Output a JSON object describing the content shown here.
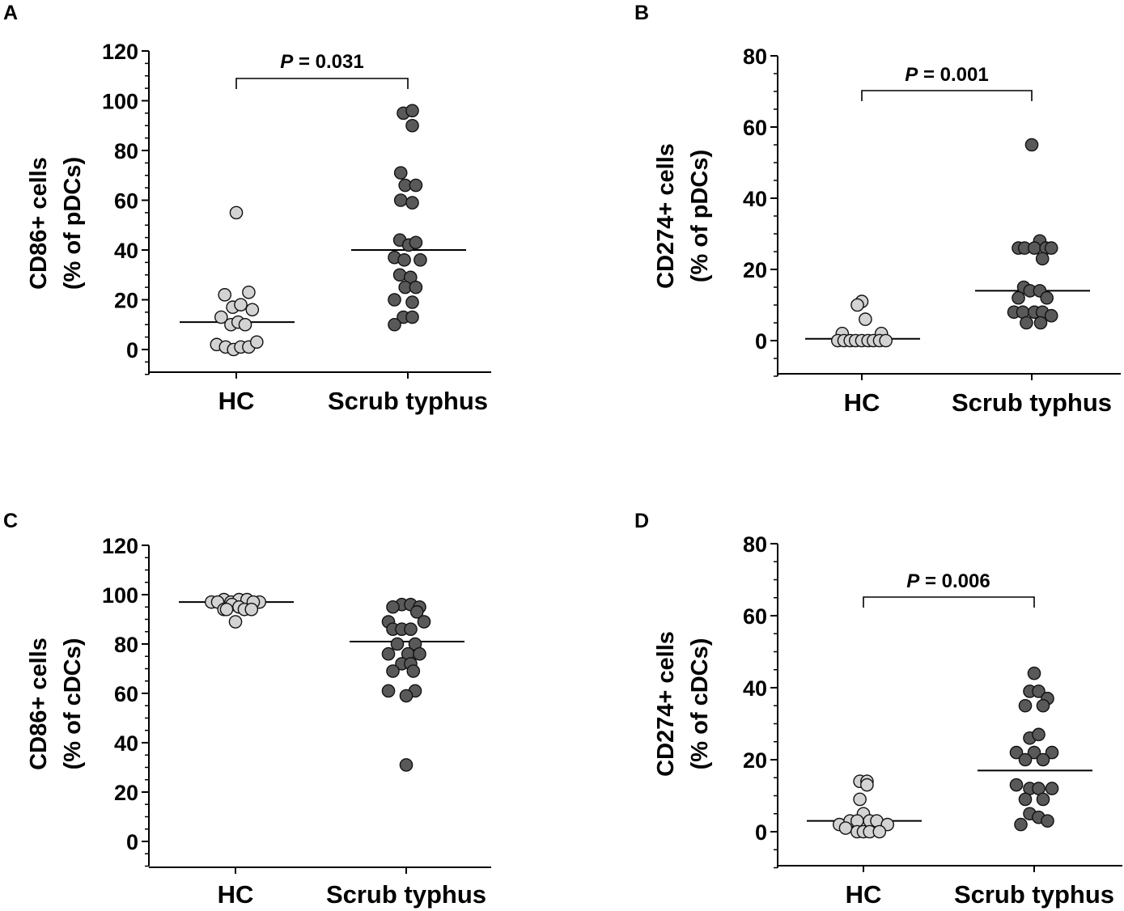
{
  "figure": {
    "colors": {
      "hc_fill": "#d3d3d3",
      "scrub_fill": "#595959",
      "marker_stroke": "#111111",
      "axis": "#000000"
    }
  },
  "chart_data": [
    {
      "panel": "A",
      "type": "scatter",
      "ylabel_line1": "CD86+ cells",
      "ylabel_line2": "(% of pDCs)",
      "ylim": [
        -10,
        120
      ],
      "yticks": [
        0,
        20,
        40,
        60,
        80,
        100,
        120
      ],
      "categories": [
        "HC",
        "Scrub typhus"
      ],
      "p_label": "P",
      "p_value": "= 0.031",
      "series": [
        {
          "name": "HC",
          "median": 11,
          "points": [
            [
              0,
              55
            ],
            [
              -0.13,
              22
            ],
            [
              0.14,
              23
            ],
            [
              -0.04,
              17
            ],
            [
              0.05,
              18
            ],
            [
              0.18,
              16
            ],
            [
              -0.17,
              13
            ],
            [
              -0.06,
              10
            ],
            [
              0.02,
              11
            ],
            [
              0.1,
              10
            ],
            [
              -0.22,
              2
            ],
            [
              -0.12,
              1
            ],
            [
              -0.03,
              0
            ],
            [
              0.05,
              1
            ],
            [
              0.14,
              1
            ],
            [
              0.23,
              3
            ]
          ]
        },
        {
          "name": "Scrub typhus",
          "median": 40,
          "points": [
            [
              -0.05,
              95
            ],
            [
              0.05,
              96
            ],
            [
              0.05,
              90
            ],
            [
              -0.08,
              71
            ],
            [
              -0.03,
              66
            ],
            [
              0.09,
              66
            ],
            [
              -0.08,
              60
            ],
            [
              0.05,
              59
            ],
            [
              -0.09,
              44
            ],
            [
              0.01,
              42
            ],
            [
              0.09,
              43
            ],
            [
              -0.15,
              37
            ],
            [
              -0.04,
              36
            ],
            [
              0.14,
              36
            ],
            [
              -0.09,
              30
            ],
            [
              0.03,
              29
            ],
            [
              -0.03,
              25
            ],
            [
              0.09,
              25
            ],
            [
              -0.15,
              20
            ],
            [
              0.05,
              19
            ],
            [
              -0.05,
              13
            ],
            [
              0.05,
              13
            ],
            [
              -0.15,
              10
            ]
          ]
        }
      ]
    },
    {
      "panel": "B",
      "type": "scatter",
      "ylabel_line1": "CD274+ cells",
      "ylabel_line2": "(% of pDCs)",
      "ylim": [
        -10,
        80
      ],
      "yticks": [
        0,
        20,
        40,
        60,
        80
      ],
      "categories": [
        "HC",
        "Scrub typhus"
      ],
      "p_label": "P",
      "p_value": "= 0.001",
      "series": [
        {
          "name": "HC",
          "median": 0.5,
          "points": [
            [
              0,
              11
            ],
            [
              -0.05,
              10
            ],
            [
              0.04,
              6
            ],
            [
              -0.22,
              2
            ],
            [
              0.22,
              2
            ],
            [
              -0.27,
              0
            ],
            [
              -0.2,
              0
            ],
            [
              -0.13,
              0
            ],
            [
              -0.07,
              0
            ],
            [
              0,
              0
            ],
            [
              0.07,
              0
            ],
            [
              0.13,
              0
            ],
            [
              0.2,
              0
            ],
            [
              0.27,
              0
            ]
          ]
        },
        {
          "name": "Scrub typhus",
          "median": 14,
          "points": [
            [
              0,
              55
            ],
            [
              0.09,
              28
            ],
            [
              -0.15,
              26
            ],
            [
              -0.08,
              26
            ],
            [
              0.03,
              26
            ],
            [
              0.16,
              26
            ],
            [
              0.22,
              26
            ],
            [
              0.12,
              23
            ],
            [
              -0.09,
              15
            ],
            [
              -0.02,
              14
            ],
            [
              0.09,
              14
            ],
            [
              -0.15,
              12
            ],
            [
              0.17,
              12
            ],
            [
              -0.2,
              8
            ],
            [
              -0.1,
              8
            ],
            [
              0.03,
              8
            ],
            [
              0.12,
              8
            ],
            [
              0.22,
              7
            ],
            [
              -0.06,
              5
            ],
            [
              0.1,
              5
            ]
          ]
        }
      ]
    },
    {
      "panel": "C",
      "type": "scatter",
      "ylabel_line1": "CD86+ cells",
      "ylabel_line2": "(% of cDCs)",
      "ylim": [
        -10,
        120
      ],
      "yticks": [
        0,
        20,
        40,
        60,
        80,
        100,
        120
      ],
      "categories": [
        "HC",
        "Scrub typhus"
      ],
      "p_label": "",
      "p_value": "",
      "series": [
        {
          "name": "HC",
          "median": 97,
          "points": [
            [
              -0.27,
              97
            ],
            [
              -0.13,
              98
            ],
            [
              -0.05,
              97
            ],
            [
              0.04,
              98
            ],
            [
              0.13,
              98
            ],
            [
              0.27,
              97
            ],
            [
              -0.2,
              97
            ],
            [
              0.2,
              97
            ],
            [
              -0.13,
              94
            ],
            [
              -0.04,
              96
            ],
            [
              0.04,
              95
            ],
            [
              0.1,
              94
            ],
            [
              0.18,
              94
            ],
            [
              -0.1,
              94
            ],
            [
              0,
              89
            ]
          ]
        },
        {
          "name": "Scrub typhus",
          "median": 81,
          "points": [
            [
              -0.05,
              96
            ],
            [
              0.05,
              96
            ],
            [
              -0.15,
              95
            ],
            [
              0.15,
              95
            ],
            [
              0.12,
              93
            ],
            [
              -0.2,
              89
            ],
            [
              0.2,
              89
            ],
            [
              -0.15,
              86
            ],
            [
              -0.05,
              86
            ],
            [
              0.05,
              86
            ],
            [
              -0.1,
              80
            ],
            [
              0.1,
              80
            ],
            [
              -0.2,
              76
            ],
            [
              0.02,
              76
            ],
            [
              0.15,
              76
            ],
            [
              -0.05,
              72
            ],
            [
              0.05,
              72
            ],
            [
              -0.15,
              69
            ],
            [
              0.08,
              69
            ],
            [
              -0.2,
              61
            ],
            [
              0.1,
              61
            ],
            [
              0,
              59
            ],
            [
              0,
              31
            ]
          ]
        }
      ]
    },
    {
      "panel": "D",
      "type": "scatter",
      "ylabel_line1": "CD274+ cells",
      "ylabel_line2": "(% of cDCs)",
      "ylim": [
        -10,
        80
      ],
      "yticks": [
        0,
        20,
        40,
        60,
        80
      ],
      "categories": [
        "HC",
        "Scrub typhus"
      ],
      "p_label": "P",
      "p_value": "= 0.006",
      "series": [
        {
          "name": "HC",
          "median": 3,
          "points": [
            [
              -0.04,
              14
            ],
            [
              0.04,
              14
            ],
            [
              0.04,
              13
            ],
            [
              -0.04,
              9
            ],
            [
              0,
              5
            ],
            [
              -0.27,
              2
            ],
            [
              -0.15,
              3
            ],
            [
              -0.07,
              3
            ],
            [
              0.07,
              3
            ],
            [
              0.15,
              3
            ],
            [
              0.27,
              2
            ],
            [
              -0.2,
              1
            ],
            [
              -0.07,
              0
            ],
            [
              0,
              0
            ],
            [
              0.07,
              0
            ],
            [
              0.18,
              0
            ]
          ]
        },
        {
          "name": "Scrub typhus",
          "median": 17,
          "points": [
            [
              0,
              44
            ],
            [
              -0.05,
              39
            ],
            [
              0.05,
              39
            ],
            [
              0.15,
              37
            ],
            [
              -0.1,
              35
            ],
            [
              0.1,
              35
            ],
            [
              -0.05,
              26
            ],
            [
              0.05,
              27
            ],
            [
              -0.2,
              22
            ],
            [
              0,
              22
            ],
            [
              0.2,
              22
            ],
            [
              -0.1,
              20
            ],
            [
              0.1,
              20
            ],
            [
              -0.2,
              13
            ],
            [
              -0.05,
              12
            ],
            [
              0.05,
              12
            ],
            [
              0.2,
              12
            ],
            [
              -0.1,
              9
            ],
            [
              0.1,
              9
            ],
            [
              -0.05,
              5
            ],
            [
              0.05,
              4
            ],
            [
              -0.15,
              2
            ],
            [
              0.15,
              3
            ]
          ]
        }
      ]
    }
  ]
}
